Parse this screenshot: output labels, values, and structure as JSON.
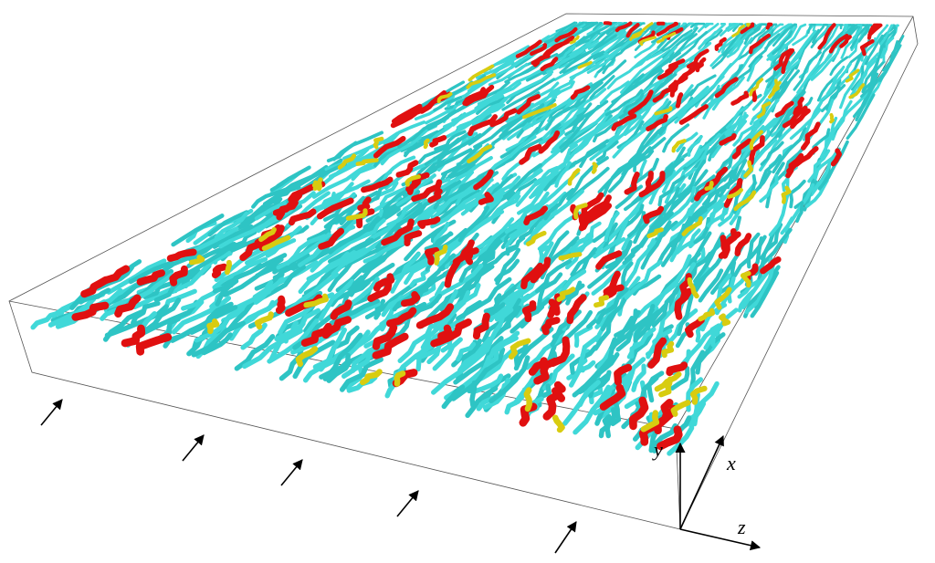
{
  "axes_labels": {
    "y": "y",
    "x": "x",
    "z": "z"
  }
}
